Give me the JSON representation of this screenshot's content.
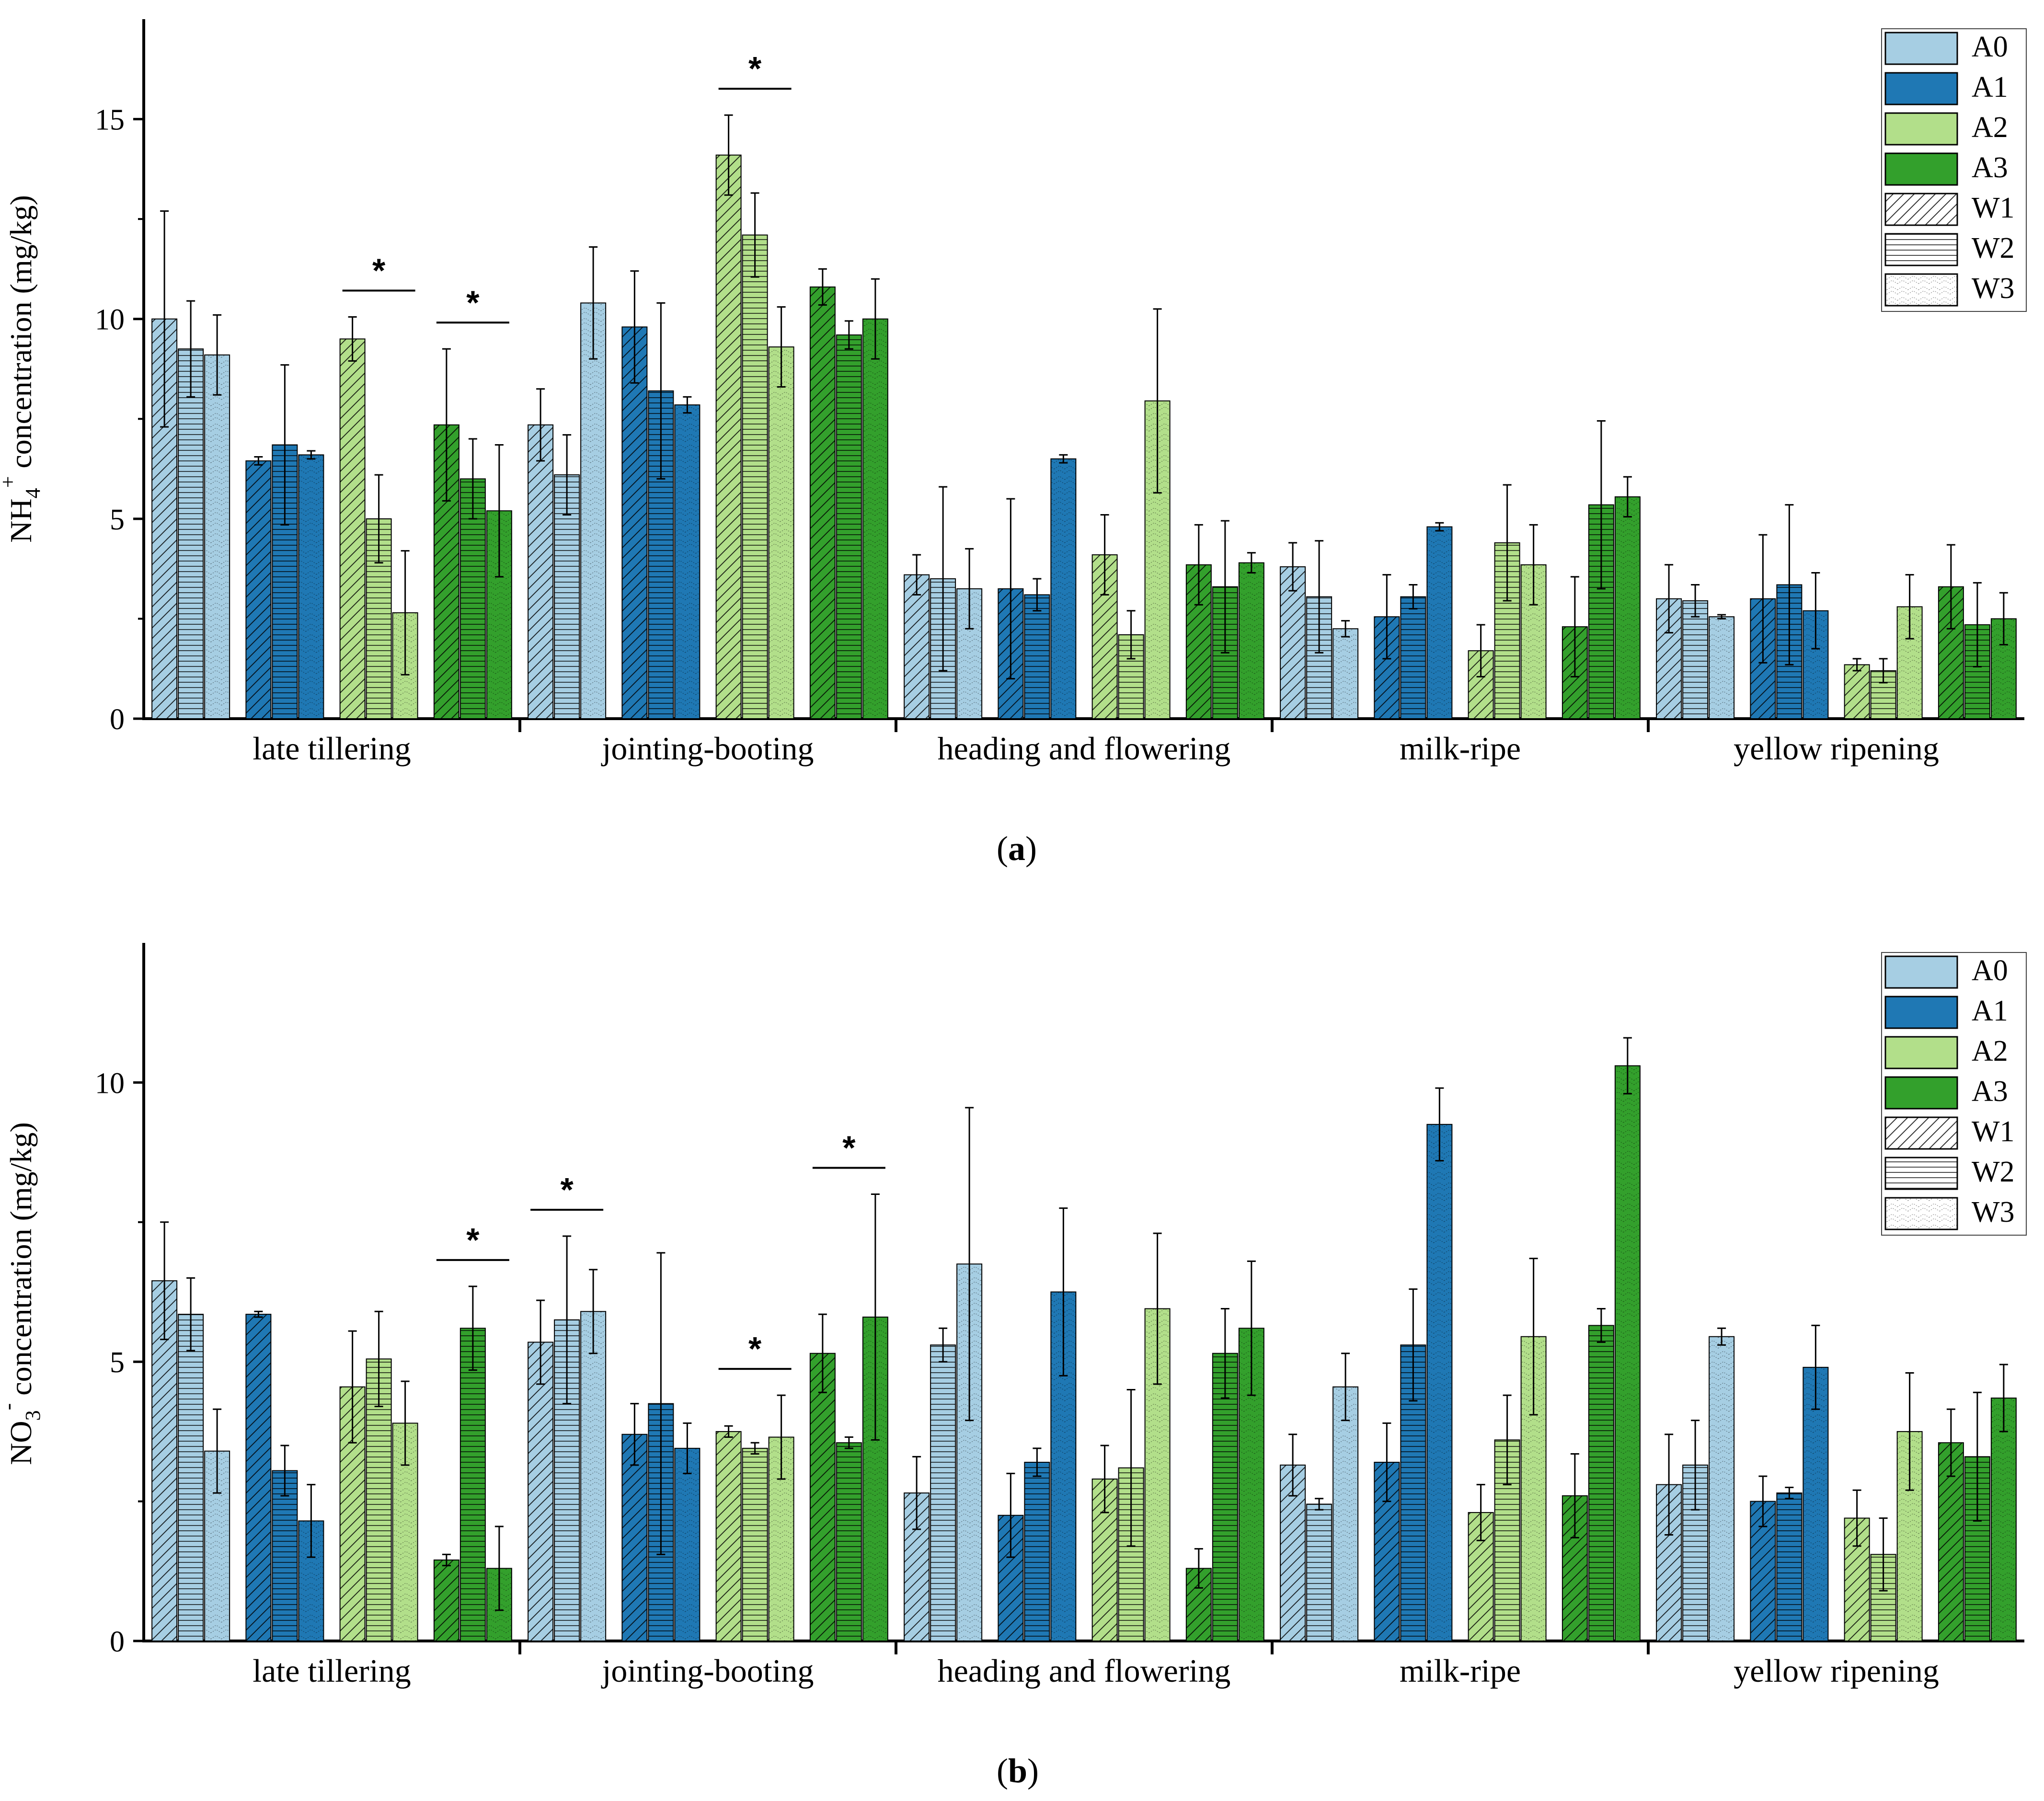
{
  "panel_labels": {
    "a": "a",
    "b": "b"
  },
  "colors": {
    "A0": "#a6cee3",
    "A1": "#1f78b4",
    "A2": "#b2df8a",
    "A3": "#33a02c"
  },
  "chart_data": [
    {
      "type": "bar",
      "panel": "a",
      "ylabel_main": "NH",
      "ylabel_sub": "4",
      "ylabel_sup": "+",
      "ylabel_rest": " concentration (mg/kg)",
      "ylim": [
        0,
        17.5
      ],
      "yticks": [
        "0",
        "5",
        "10",
        "15"
      ],
      "categories": [
        "late tillering",
        "jointing-booting",
        "heading and flowering",
        "milk-ripe",
        "yellow ripening"
      ],
      "legend": {
        "position": "top-right",
        "entries": [
          {
            "label": "A0",
            "pattern": "A0"
          },
          {
            "label": "A1",
            "pattern": "A1"
          },
          {
            "label": "A2",
            "pattern": "A2"
          },
          {
            "label": "A3",
            "pattern": "A3"
          },
          {
            "label": "W1",
            "pattern": "W1"
          },
          {
            "label": "W2",
            "pattern": "W2"
          },
          {
            "label": "W3",
            "pattern": "W3"
          }
        ]
      },
      "series": [
        {
          "name": "A0",
          "values": [
            [
              10.0,
              9.25,
              9.1
            ],
            [
              7.35,
              6.1,
              10.4
            ],
            [
              3.6,
              3.5,
              3.25
            ],
            [
              3.8,
              3.05,
              2.25
            ],
            [
              3.0,
              2.95,
              2.55
            ]
          ],
          "errors": [
            [
              2.7,
              1.2,
              1.0
            ],
            [
              0.9,
              1.0,
              1.4
            ],
            [
              0.5,
              2.3,
              1.0
            ],
            [
              0.6,
              1.4,
              0.2
            ],
            [
              0.85,
              0.4,
              0.05
            ]
          ]
        },
        {
          "name": "A1",
          "values": [
            [
              6.45,
              6.85,
              6.6
            ],
            [
              9.8,
              8.2,
              7.85
            ],
            [
              3.25,
              3.1,
              6.5
            ],
            [
              2.55,
              3.05,
              4.8
            ],
            [
              3.0,
              3.35,
              2.7
            ]
          ],
          "errors": [
            [
              0.1,
              2.0,
              0.1
            ],
            [
              1.4,
              2.2,
              0.2
            ],
            [
              2.25,
              0.4,
              0.1
            ],
            [
              1.05,
              0.3,
              0.1
            ],
            [
              1.6,
              2.0,
              0.95
            ]
          ]
        },
        {
          "name": "A2",
          "values": [
            [
              9.5,
              5.0,
              2.65
            ],
            [
              14.1,
              12.1,
              9.3
            ],
            [
              4.1,
              2.1,
              7.95
            ],
            [
              1.7,
              4.4,
              3.85
            ],
            [
              1.35,
              1.2,
              2.8
            ]
          ],
          "errors": [
            [
              0.55,
              1.1,
              1.55
            ],
            [
              1.0,
              1.05,
              1.0
            ],
            [
              1.0,
              0.6,
              2.3
            ],
            [
              0.65,
              1.45,
              1.0
            ],
            [
              0.15,
              0.3,
              0.8
            ]
          ]
        },
        {
          "name": "A3",
          "values": [
            [
              7.35,
              6.0,
              5.2
            ],
            [
              10.8,
              9.6,
              10.0
            ],
            [
              3.85,
              3.3,
              3.9
            ],
            [
              2.3,
              5.35,
              5.55
            ],
            [
              3.3,
              2.35,
              2.5
            ]
          ],
          "errors": [
            [
              1.9,
              1.0,
              1.65
            ],
            [
              0.45,
              0.35,
              1.0
            ],
            [
              1.0,
              1.65,
              0.25
            ],
            [
              1.25,
              2.1,
              0.5
            ],
            [
              1.05,
              1.05,
              0.65
            ]
          ]
        }
      ],
      "significance": [
        {
          "category": 0,
          "series": 2,
          "label": "*"
        },
        {
          "category": 0,
          "series": 3,
          "label": "*"
        },
        {
          "category": 1,
          "series": 2,
          "label": "*"
        }
      ]
    },
    {
      "type": "bar",
      "panel": "b",
      "ylabel_main": "NO",
      "ylabel_sub": "3",
      "ylabel_sup": "-",
      "ylabel_rest": " concentration (mg/kg)",
      "ylim": [
        0,
        12.5
      ],
      "yticks": [
        "0",
        "5",
        "10"
      ],
      "categories": [
        "late tillering",
        "jointing-booting",
        "heading and flowering",
        "milk-ripe",
        "yellow ripening"
      ],
      "legend": {
        "position": "top-right",
        "entries": [
          {
            "label": "A0",
            "pattern": "A0"
          },
          {
            "label": "A1",
            "pattern": "A1"
          },
          {
            "label": "A2",
            "pattern": "A2"
          },
          {
            "label": "A3",
            "pattern": "A3"
          },
          {
            "label": "W1",
            "pattern": "W1"
          },
          {
            "label": "W2",
            "pattern": "W2"
          },
          {
            "label": "W3",
            "pattern": "W3"
          }
        ]
      },
      "series": [
        {
          "name": "A0",
          "values": [
            [
              6.45,
              5.85,
              3.4
            ],
            [
              5.35,
              5.75,
              5.9
            ],
            [
              2.65,
              5.3,
              6.75
            ],
            [
              3.15,
              2.45,
              4.55
            ],
            [
              2.8,
              3.15,
              5.45
            ]
          ],
          "errors": [
            [
              1.05,
              0.65,
              0.75
            ],
            [
              0.75,
              1.5,
              0.75
            ],
            [
              0.65,
              0.3,
              2.8
            ],
            [
              0.55,
              0.1,
              0.6
            ],
            [
              0.9,
              0.8,
              0.15
            ]
          ]
        },
        {
          "name": "A1",
          "values": [
            [
              5.85,
              3.05,
              2.15
            ],
            [
              3.7,
              4.25,
              3.45
            ],
            [
              2.25,
              3.2,
              6.25
            ],
            [
              3.2,
              5.3,
              9.25
            ],
            [
              2.5,
              2.65,
              4.9
            ]
          ],
          "errors": [
            [
              0.05,
              0.45,
              0.65
            ],
            [
              0.55,
              2.7,
              0.45
            ],
            [
              0.75,
              0.25,
              1.5
            ],
            [
              0.7,
              1.0,
              0.65
            ],
            [
              0.45,
              0.1,
              0.75
            ]
          ]
        },
        {
          "name": "A2",
          "values": [
            [
              4.55,
              5.05,
              3.9
            ],
            [
              3.75,
              3.45,
              3.65
            ],
            [
              2.9,
              3.1,
              5.95
            ],
            [
              2.3,
              3.6,
              5.45
            ],
            [
              2.2,
              1.55,
              3.75
            ]
          ],
          "errors": [
            [
              1.0,
              0.85,
              0.75
            ],
            [
              0.1,
              0.1,
              0.75
            ],
            [
              0.6,
              1.4,
              1.35
            ],
            [
              0.5,
              0.8,
              1.4
            ],
            [
              0.5,
              0.65,
              1.05
            ]
          ]
        },
        {
          "name": "A3",
          "values": [
            [
              1.45,
              5.6,
              1.3
            ],
            [
              5.15,
              3.55,
              5.8
            ],
            [
              1.3,
              5.15,
              5.6
            ],
            [
              2.6,
              5.65,
              10.3
            ],
            [
              3.55,
              3.3,
              4.35
            ]
          ],
          "errors": [
            [
              0.1,
              0.75,
              0.75
            ],
            [
              0.7,
              0.1,
              2.2
            ],
            [
              0.35,
              0.8,
              1.2
            ],
            [
              0.75,
              0.3,
              0.5
            ],
            [
              0.6,
              1.15,
              0.6
            ]
          ]
        }
      ],
      "significance": [
        {
          "category": 0,
          "series": 3,
          "label": "*"
        },
        {
          "category": 1,
          "series": 0,
          "label": "*"
        },
        {
          "category": 1,
          "series": 2,
          "label": "*"
        },
        {
          "category": 1,
          "series": 3,
          "label": "*"
        }
      ]
    }
  ]
}
